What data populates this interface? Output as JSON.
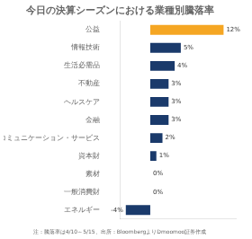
{
  "chart_data": {
    "type": "bar",
    "orientation": "horizontal",
    "title": "今日の決算シーズンにおける業種別騰落率",
    "annotation": "注：騰落率は4/10～5/15、出所：BloombergよりDmoomoo証券作成",
    "categories": [
      "公益",
      "情報技術",
      "生活必需品",
      "不動産",
      "ヘルスケア",
      "金融",
      "コミュニケーション・サービス",
      "資本財",
      "素材",
      "一般消費財",
      "エネルギー"
    ],
    "values": [
      12,
      5,
      4,
      3,
      3,
      3,
      2,
      1,
      0,
      0,
      -4
    ],
    "value_labels": [
      "12%",
      "5%",
      "4%",
      "3%",
      "3%",
      "3%",
      "2%",
      "1%",
      "0%",
      "0%",
      "-4%"
    ],
    "colors": [
      "#F5A623",
      "#1a3a6b",
      "#1a3a6b",
      "#1a3a6b",
      "#1a3a6b",
      "#1a3a6b",
      "#1a3a6b",
      "#1a3a6b",
      "#1a3a6b",
      "#1a3a6b",
      "#1a3a6b"
    ],
    "xlim": [
      -5,
      14
    ],
    "data_labels": true,
    "tick_labels": "y",
    "grid": false
  }
}
